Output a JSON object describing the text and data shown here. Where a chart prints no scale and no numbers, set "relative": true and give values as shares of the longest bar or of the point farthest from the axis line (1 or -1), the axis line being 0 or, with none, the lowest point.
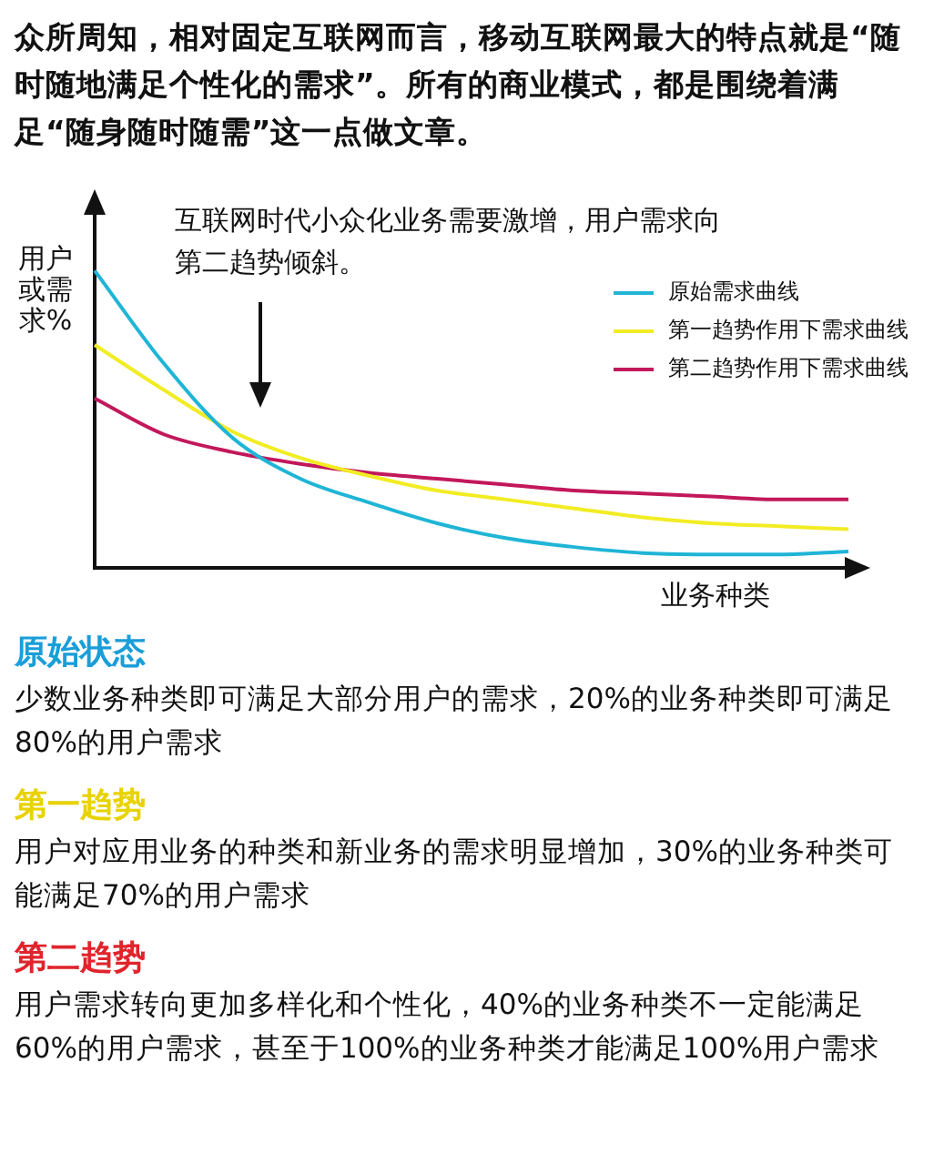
{
  "chart_data": {
    "type": "line",
    "title": "众所周知，相对固定互联网而言，移动互联网最大的特点就是“随时随地满足个性化的需求”。所有的商业模式，都是围绕着满足“随身随时随需”这一点做文章。",
    "xlabel": "业务种类",
    "ylabel": "用户或需求%",
    "relative": true,
    "legend": "top right",
    "marker": "none",
    "categories": [
      null,
      null,
      null,
      null,
      null,
      null,
      null,
      null,
      null,
      null,
      null,
      null
    ],
    "series": [
      {
        "name": "原始需求曲线",
        "color": "#1fb5d6",
        "values": [
          1,
          0.69,
          0.44,
          0.3,
          0.22,
          0.15,
          0.1,
          0.07,
          0.05,
          0.045,
          0.045,
          0.055
        ]
      },
      {
        "name": "第一趋势作用下需求曲线",
        "color": "#f2ec24",
        "values": [
          0.75,
          0.6,
          0.46,
          0.37,
          0.31,
          0.26,
          0.23,
          0.2,
          0.17,
          0.15,
          0.14,
          0.13
        ]
      },
      {
        "name": "第二趋势作用下需求曲线",
        "color": "#c2185b",
        "values": [
          0.57,
          0.45,
          0.39,
          0.35,
          0.32,
          0.3,
          0.28,
          0.26,
          0.25,
          0.24,
          0.23,
          0.23
        ]
      }
    ],
    "annotations": [
      "互联网时代小众化业务需要激增，用户需求向第二趋势倾斜。",
      "原始状态",
      "少数业务种类即可满足大部分用户的需求，20%的业务种类即可满足80%的用户需求",
      "第一趋势",
      "用户对应用业务的种类和新业务的需求明显增加，30%的业务种类可能满足70%的用户需求",
      "第二趋势",
      "用户需求转向更加多样化和个性化，40%的业务种类不一定能满足60%的用户需求，甚至于100%的业务种类才能满足100%用户需求"
    ]
  }
}
